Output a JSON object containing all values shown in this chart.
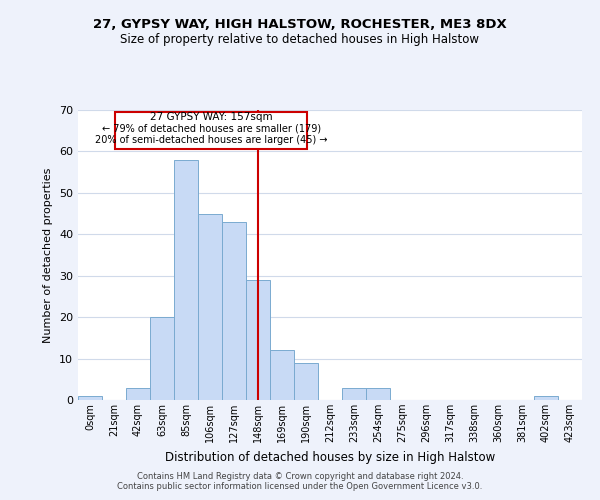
{
  "title": "27, GYPSY WAY, HIGH HALSTOW, ROCHESTER, ME3 8DX",
  "subtitle": "Size of property relative to detached houses in High Halstow",
  "xlabel": "Distribution of detached houses by size in High Halstow",
  "ylabel": "Number of detached properties",
  "bar_color": "#c8daf5",
  "bar_edge_color": "#7aaad0",
  "bin_labels": [
    "0sqm",
    "21sqm",
    "42sqm",
    "63sqm",
    "85sqm",
    "106sqm",
    "127sqm",
    "148sqm",
    "169sqm",
    "190sqm",
    "212sqm",
    "233sqm",
    "254sqm",
    "275sqm",
    "296sqm",
    "317sqm",
    "338sqm",
    "360sqm",
    "381sqm",
    "402sqm",
    "423sqm"
  ],
  "bar_heights": [
    1,
    0,
    3,
    20,
    58,
    45,
    43,
    29,
    12,
    9,
    0,
    3,
    3,
    0,
    0,
    0,
    0,
    0,
    0,
    1,
    0
  ],
  "ylim": [
    0,
    70
  ],
  "yticks": [
    0,
    10,
    20,
    30,
    40,
    50,
    60,
    70
  ],
  "property_line_x": 7.5,
  "annotation_title": "27 GYPSY WAY: 157sqm",
  "annotation_line1": "← 79% of detached houses are smaller (179)",
  "annotation_line2": "20% of semi-detached houses are larger (45) →",
  "vline_color": "#cc0000",
  "annotation_box_edge_color": "#cc0000",
  "footer_line1": "Contains HM Land Registry data © Crown copyright and database right 2024.",
  "footer_line2": "Contains public sector information licensed under the Open Government Licence v3.0.",
  "background_color": "#eef2fb",
  "plot_background": "#ffffff",
  "grid_color": "#d0daea"
}
